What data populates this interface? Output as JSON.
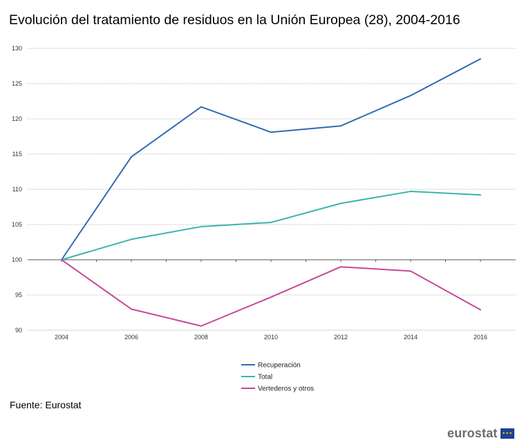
{
  "title": "Evolución del tratamiento de residuos en la Unión Europea (28), 2004-2016",
  "source": "Fuente: Eurostat",
  "logo": {
    "text": "eurostat",
    "flag_icon": "eu-flag-icon"
  },
  "chart_data": {
    "type": "line",
    "title": "",
    "xlabel": "",
    "ylabel": "",
    "x": [
      2004,
      2006,
      2008,
      2010,
      2012,
      2014,
      2016
    ],
    "x_ticks": [
      "2004",
      "2006",
      "2008",
      "2010",
      "2012",
      "2014",
      "2016"
    ],
    "ylim": [
      90,
      130
    ],
    "y_ticks": [
      90,
      95,
      100,
      105,
      110,
      115,
      120,
      125,
      130
    ],
    "grid": "horizontal dotted",
    "legend_placement": "bottom",
    "series": [
      {
        "name": "Recuperación",
        "color": "#2e6bb0",
        "values": [
          100,
          114.6,
          121.7,
          118.1,
          119.0,
          123.3,
          128.5
        ]
      },
      {
        "name": "Total",
        "color": "#3ab3ad",
        "values": [
          100,
          102.9,
          104.7,
          105.3,
          108.0,
          109.7,
          109.2
        ]
      },
      {
        "name": "Vertederos y otros",
        "color": "#c94598",
        "values": [
          100,
          93.0,
          90.6,
          94.7,
          99.0,
          98.4,
          92.9
        ]
      }
    ]
  }
}
